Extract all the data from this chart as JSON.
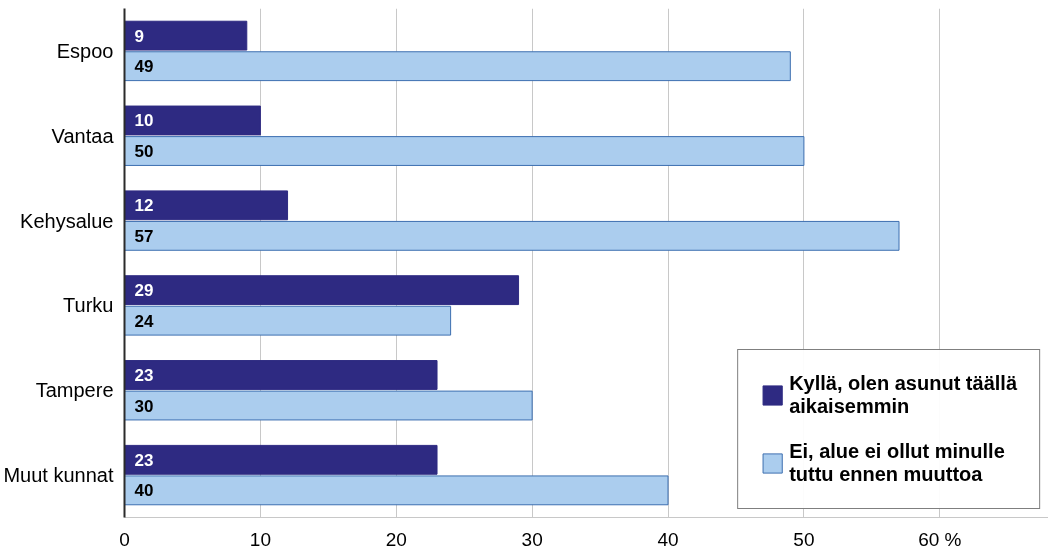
{
  "chart_data": {
    "type": "bar",
    "orientation": "horizontal",
    "categories": [
      "Espoo",
      "Vantaa",
      "Kehysalue",
      "Turku",
      "Tampere",
      "Muut kunnat"
    ],
    "series": [
      {
        "name": "Kyllä, olen asunut täällä aikaisemmin",
        "color": "#2e2a82",
        "values": [
          9,
          10,
          12,
          29,
          23,
          23
        ]
      },
      {
        "name": "Ei, alue ei ollut minulle tuttu ennen muuttoa",
        "color": "#abcdee",
        "values": [
          49,
          50,
          57,
          24,
          30,
          40
        ]
      }
    ],
    "xlim": [
      0,
      68
    ],
    "xticks": [
      0,
      10,
      20,
      30,
      40,
      50,
      {
        "value": 60,
        "label": "60 %"
      }
    ],
    "grid": "x",
    "legend": "bottom right",
    "data_labels": true
  }
}
